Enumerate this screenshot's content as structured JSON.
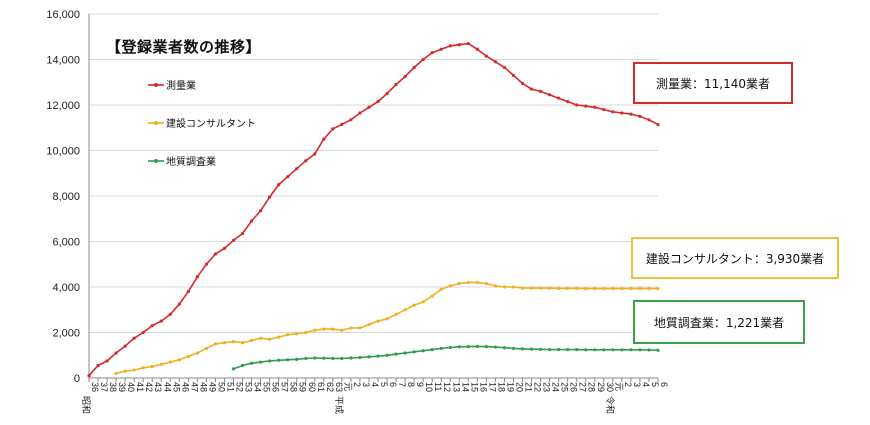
{
  "chart_data": {
    "type": "line",
    "title": "【登録業者数の推移】",
    "xlabel": "",
    "ylabel": "",
    "ylim": [
      0,
      16000
    ],
    "yticks": [
      "0",
      "2,000",
      "4,000",
      "6,000",
      "8,000",
      "10,000",
      "12,000",
      "14,000",
      "16,000"
    ],
    "x": [
      "36",
      "37",
      "38",
      "39",
      "40",
      "41",
      "42",
      "43",
      "44",
      "45",
      "46",
      "47",
      "48",
      "49",
      "50",
      "51",
      "52",
      "53",
      "54",
      "55",
      "56",
      "57",
      "58",
      "59",
      "60",
      "61",
      "62",
      "63",
      "元",
      "2",
      "3",
      "4",
      "5",
      "6",
      "7",
      "8",
      "9",
      "10",
      "11",
      "12",
      "13",
      "14",
      "15",
      "16",
      "17",
      "18",
      "19",
      "20",
      "21",
      "22",
      "23",
      "24",
      "25",
      "26",
      "27",
      "28",
      "29",
      "30",
      "元",
      "2",
      "3",
      "4",
      "5",
      "6"
    ],
    "era_labels": [
      {
        "text": "昭和",
        "index": 0
      },
      {
        "text": "平成",
        "index": 28
      },
      {
        "text": "令和",
        "index": 58
      }
    ],
    "grid": true,
    "legend": "top-left",
    "series": [
      {
        "name": "測量業",
        "color": "#d62a2a",
        "values": [
          100,
          550,
          750,
          1100,
          1400,
          1750,
          2000,
          2300,
          2500,
          2800,
          3250,
          3800,
          4450,
          5000,
          5450,
          5700,
          6050,
          6350,
          6900,
          7350,
          7950,
          8500,
          8850,
          9200,
          9550,
          9850,
          10500,
          10950,
          11150,
          11350,
          11650,
          11900,
          12150,
          12500,
          12900,
          13250,
          13650,
          14000,
          14300,
          14450,
          14600,
          14650,
          14700,
          14450,
          14150,
          13900,
          13650,
          13300,
          12950,
          12700,
          12600,
          12450,
          12300,
          12150,
          12000,
          11950,
          11900,
          11800,
          11700,
          11650,
          11600,
          11500,
          11350,
          11140
        ]
      },
      {
        "name": "建設コンサルタント",
        "color": "#f0b020",
        "values": [
          null,
          null,
          null,
          200,
          300,
          350,
          450,
          500,
          600,
          700,
          800,
          950,
          1100,
          1300,
          1500,
          1550,
          1600,
          1550,
          1650,
          1750,
          1700,
          1800,
          1900,
          1950,
          2000,
          2100,
          2150,
          2150,
          2100,
          2200,
          2200,
          2350,
          2500,
          2600,
          2800,
          3000,
          3200,
          3350,
          3600,
          3900,
          4050,
          4150,
          4200,
          4200,
          4150,
          4050,
          4000,
          4000,
          3950,
          3950,
          3950,
          3950,
          3940,
          3940,
          3940,
          3930,
          3930,
          3930,
          3930,
          3930,
          3930,
          3930,
          3930,
          3930
        ]
      },
      {
        "name": "地質調査業",
        "color": "#2f9e4a",
        "values": [
          null,
          null,
          null,
          null,
          null,
          null,
          null,
          null,
          null,
          null,
          null,
          null,
          null,
          null,
          null,
          null,
          400,
          550,
          650,
          700,
          750,
          780,
          800,
          820,
          860,
          880,
          870,
          860,
          860,
          880,
          900,
          930,
          960,
          1000,
          1050,
          1100,
          1150,
          1200,
          1250,
          1300,
          1340,
          1370,
          1380,
          1390,
          1380,
          1360,
          1330,
          1300,
          1280,
          1270,
          1260,
          1250,
          1250,
          1250,
          1250,
          1240,
          1240,
          1240,
          1240,
          1240,
          1240,
          1240,
          1230,
          1221
        ]
      }
    ]
  },
  "callouts": {
    "survey": "測量業：11,140業者",
    "consult": "建設コンサルタント：3,930業者",
    "geo": "地質調査業：1,221業者"
  },
  "colors": {
    "survey_box": "#d62a2a",
    "consult_box": "#f0c040",
    "geo_box": "#3aa14a"
  }
}
